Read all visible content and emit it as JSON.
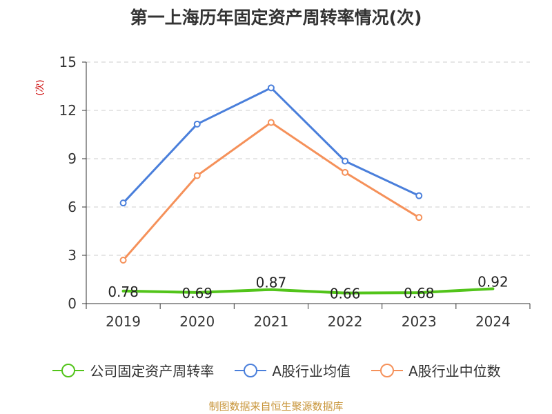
{
  "chart_data": {
    "type": "line",
    "title": "第一上海历年固定资产周转率情况(次)",
    "ylabel": "(次)",
    "ylim": [
      0,
      15
    ],
    "yticks": [
      0,
      3,
      6,
      9,
      12,
      15
    ],
    "grid": true,
    "legend_position": "bottom",
    "categories": [
      "2019",
      "2020",
      "2021",
      "2022",
      "2023",
      "2024"
    ],
    "series": [
      {
        "name": "公司固定资产周转率",
        "color": "#52c41a",
        "values": [
          0.78,
          0.69,
          0.87,
          0.66,
          0.68,
          0.92
        ],
        "data_labels": [
          "0.78",
          "0.69",
          "0.87",
          "0.66",
          "0.68",
          "0.92"
        ]
      },
      {
        "name": "A股行业均值",
        "color": "#4a7fdb",
        "values": [
          6.25,
          11.15,
          13.4,
          8.85,
          6.7,
          null
        ]
      },
      {
        "name": "A股行业中位数",
        "color": "#f5915a",
        "values": [
          2.7,
          7.95,
          11.25,
          8.15,
          5.35,
          null
        ]
      }
    ]
  },
  "source_note": "制图数据来自恒生聚源数据库"
}
